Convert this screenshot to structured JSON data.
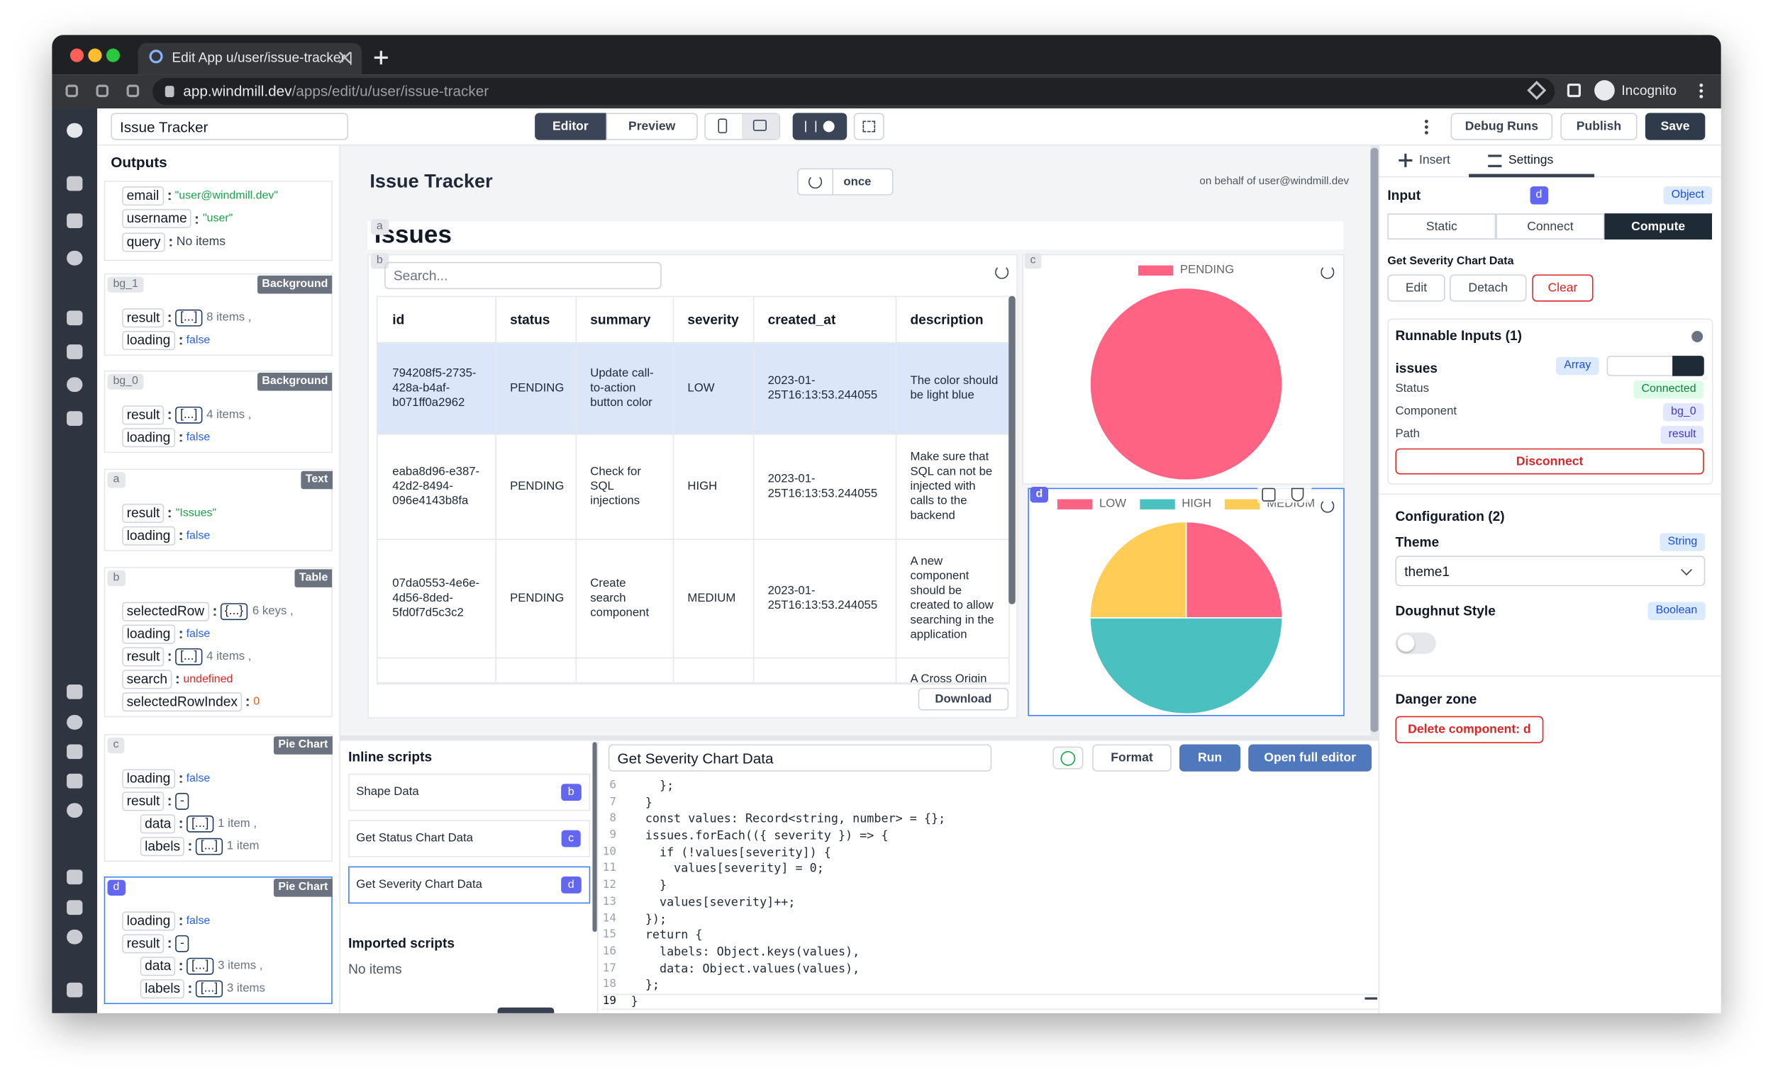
{
  "browser": {
    "tab_title": "Edit App u/user/issue-tracker |",
    "url_host": "app.windmill.dev",
    "url_path": "/apps/edit/u/user/issue-tracker",
    "profile": "Incognito"
  },
  "toolbar": {
    "app_name": "Issue Tracker",
    "editor": "Editor",
    "preview": "Preview",
    "debug_runs": "Debug Runs",
    "publish": "Publish",
    "save": "Save"
  },
  "outputs": {
    "title": "Outputs",
    "context": [
      {
        "key": "email",
        "value": "\"user@windmill.dev\"",
        "color": "#16a34a"
      },
      {
        "key": "username",
        "value": "\"user\"",
        "color": "#16a34a"
      },
      {
        "key": "query",
        "value": "No items",
        "color": "#374151"
      }
    ],
    "components": [
      {
        "id": "bg_1",
        "type": "Background",
        "rows": [
          {
            "key": "result",
            "value": "[...]",
            "note": "8 items ,"
          },
          {
            "key": "loading",
            "value": "false",
            "color": "#2563eb"
          }
        ]
      },
      {
        "id": "bg_0",
        "type": "Background",
        "rows": [
          {
            "key": "result",
            "value": "[...]",
            "note": "4 items ,"
          },
          {
            "key": "loading",
            "value": "false",
            "color": "#2563eb"
          }
        ]
      },
      {
        "id": "a",
        "type": "Text",
        "rows": [
          {
            "key": "result",
            "value": "\"Issues\"",
            "color": "#16a34a"
          },
          {
            "key": "loading",
            "value": "false",
            "color": "#2563eb"
          }
        ]
      },
      {
        "id": "b",
        "type": "Table",
        "rows": [
          {
            "key": "selectedRow",
            "value": "{...}",
            "note": "6 keys ,"
          },
          {
            "key": "loading",
            "value": "false",
            "color": "#2563eb"
          },
          {
            "key": "result",
            "value": "[...]",
            "note": "4 items ,"
          },
          {
            "key": "search",
            "value": "undefined",
            "color": "#dc2626"
          },
          {
            "key": "selectedRowIndex",
            "value": "0",
            "color": "#ea580c"
          }
        ]
      },
      {
        "id": "c",
        "type": "Pie Chart",
        "rows": [
          {
            "key": "loading",
            "value": "false",
            "color": "#2563eb"
          },
          {
            "key": "result",
            "value": "-",
            "children": [
              {
                "key": "data",
                "value": "[...]",
                "note": "1 item ,"
              },
              {
                "key": "labels",
                "value": "[...]",
                "note": "1 item"
              }
            ]
          }
        ]
      },
      {
        "id": "d",
        "type": "Pie Chart",
        "rows": [
          {
            "key": "loading",
            "value": "false",
            "color": "#2563eb"
          },
          {
            "key": "result",
            "value": "-",
            "children": [
              {
                "key": "data",
                "value": "[...]",
                "note": "3 items ,"
              },
              {
                "key": "labels",
                "value": "[...]",
                "note": "3 items"
              }
            ]
          }
        ]
      }
    ]
  },
  "canvas": {
    "title": "Issue Tracker",
    "refresh": "once",
    "on_behalf": "on behalf of user@windmill.dev",
    "text_component": {
      "label": "a",
      "text": "Issues"
    },
    "table_component": {
      "label": "b",
      "search_placeholder": "Search...",
      "columns": [
        "id",
        "status",
        "summary",
        "severity",
        "created_at",
        "description"
      ],
      "rows": [
        [
          "794208f5-2735-428a-b4af-b071ff0a2962",
          "PENDING",
          "Update call-to-action button color",
          "LOW",
          "2023-01-25T16:13:53.244055",
          "The color should be light blue"
        ],
        [
          "eaba8d96-e387-42d2-8494-096e4143b8fa",
          "PENDING",
          "Check for SQL injections",
          "HIGH",
          "2023-01-25T16:13:53.244055",
          "Make sure that SQL can not be injected with calls to the backend"
        ],
        [
          "07da0553-4e6e-4d56-8ded-5fd0f7d5c3c2",
          "PENDING",
          "Create search component",
          "MEDIUM",
          "2023-01-25T16:13:53.244055",
          "A new component should be created to allow searching in the application"
        ],
        [
          null,
          null,
          null,
          null,
          null,
          "A Cross Origin"
        ]
      ],
      "download": "Download"
    },
    "charts": [
      {
        "label": "c",
        "type": "pie",
        "labels": [
          "PENDING"
        ],
        "values": [
          4
        ],
        "colors": [
          "#ff6384"
        ]
      },
      {
        "label": "d",
        "type": "pie",
        "labels": [
          "LOW",
          "HIGH",
          "MEDIUM"
        ],
        "values": [
          1,
          2,
          1
        ],
        "colors": [
          "#ff6384",
          "#4bc0c0",
          "#ffcd56"
        ]
      }
    ]
  },
  "inline_scripts": {
    "title": "Inline scripts",
    "items": [
      {
        "name": "Shape Data",
        "component": "b"
      },
      {
        "name": "Get Status Chart Data",
        "component": "c"
      },
      {
        "name": "Get Severity Chart Data",
        "component": "d"
      }
    ],
    "imported_title": "Imported scripts",
    "imported_empty": "No items"
  },
  "editor": {
    "script_name": "Get Severity Chart Data",
    "format": "Format",
    "run": "Run",
    "open": "Open full editor",
    "lines": [
      {
        "n": "6",
        "code": "    };"
      },
      {
        "n": "7",
        "code": "  }"
      },
      {
        "n": "8",
        "code": "  const values: Record<string, number> = {};"
      },
      {
        "n": "9",
        "code": "  issues.forEach(({ severity }) => {"
      },
      {
        "n": "10",
        "code": "    if (!values[severity]) {"
      },
      {
        "n": "11",
        "code": "      values[severity] = 0;"
      },
      {
        "n": "12",
        "code": "    }"
      },
      {
        "n": "13",
        "code": "    values[severity]++;"
      },
      {
        "n": "14",
        "code": "  });"
      },
      {
        "n": "15",
        "code": "  return {"
      },
      {
        "n": "16",
        "code": "    labels: Object.keys(values),"
      },
      {
        "n": "17",
        "code": "    data: Object.values(values),"
      },
      {
        "n": "18",
        "code": "  };"
      },
      {
        "n": "19",
        "code": "}"
      }
    ]
  },
  "settings": {
    "tabs": [
      "Insert",
      "Settings"
    ],
    "input_title": "Input",
    "component": "d",
    "input_type": "Object",
    "modes": [
      "Static",
      "Connect",
      "Compute"
    ],
    "script_name": "Get Severity Chart Data",
    "actions": [
      "Edit",
      "Detach",
      "Clear"
    ],
    "runnable_title": "Runnable Inputs (1)",
    "runnable": {
      "name": "issues",
      "type": "Array",
      "fields": [
        {
          "label": "Status",
          "value": "Connected"
        },
        {
          "label": "Component",
          "value": "bg_0"
        },
        {
          "label": "Path",
          "value": "result"
        }
      ],
      "disconnect": "Disconnect"
    },
    "config_title": "Configuration (2)",
    "config": [
      {
        "label": "Theme",
        "type": "String",
        "value": "theme1"
      },
      {
        "label": "Doughnut Style",
        "type": "Boolean"
      }
    ],
    "danger_title": "Danger zone",
    "delete": "Delete component: d"
  }
}
